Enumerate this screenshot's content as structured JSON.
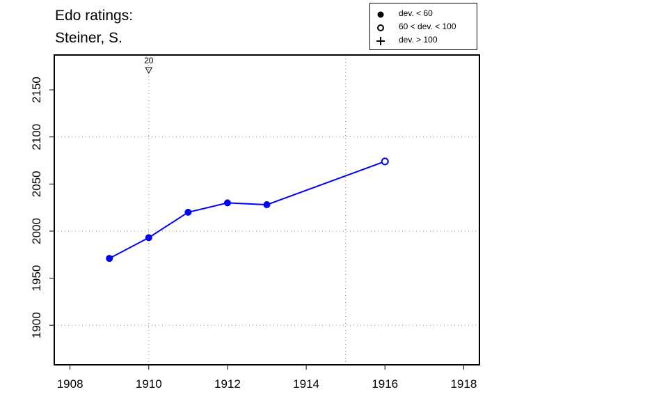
{
  "title": {
    "line1": "Edo ratings:",
    "line2": "Steiner, S."
  },
  "legend": {
    "items": [
      {
        "symbol": "filled-circle",
        "label": "dev. < 60"
      },
      {
        "symbol": "open-circle",
        "label": "60 < dev. < 100"
      },
      {
        "symbol": "plus",
        "label": "dev. > 100"
      }
    ]
  },
  "colors": {
    "series": "#0000ff",
    "axis": "#000000",
    "grid": "#888888"
  },
  "chart_data": {
    "type": "line",
    "title": "Edo ratings: Steiner, S.",
    "xlabel": "",
    "ylabel": "",
    "xlim": [
      1907.6,
      1918.4
    ],
    "ylim": [
      1858,
      2187
    ],
    "x_ticks": [
      1908,
      1910,
      1912,
      1914,
      1916,
      1918
    ],
    "y_ticks": [
      1900,
      1950,
      2000,
      2050,
      2100,
      2150
    ],
    "grid_x": [
      1910,
      1915
    ],
    "grid_y": [
      1900,
      2000,
      2100
    ],
    "legend_position": "top-right",
    "series": [
      {
        "x": [
          1909,
          1910,
          1911,
          1912,
          1913,
          1916
        ],
        "y": [
          1971,
          1993,
          2020,
          2030,
          2028,
          2074
        ],
        "markers": [
          "filled-circle",
          "filled-circle",
          "filled-circle",
          "filled-circle",
          "filled-circle",
          "open-circle"
        ]
      }
    ],
    "annotations": [
      {
        "x": 1910,
        "symbol": "down-triangle",
        "label": "20"
      }
    ]
  }
}
